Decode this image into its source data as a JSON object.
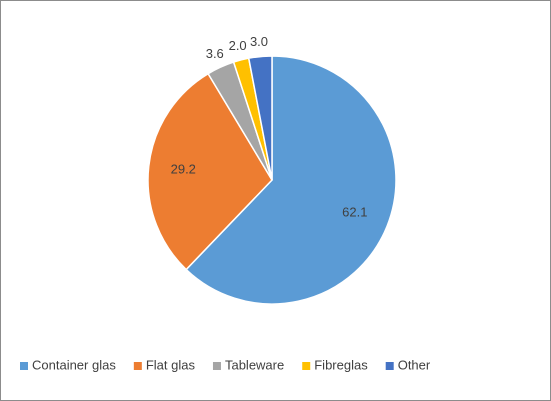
{
  "chart_data": {
    "type": "pie",
    "categories": [
      "Container glas",
      "Flat glas",
      "Tableware",
      "Fibreglas",
      "Other"
    ],
    "values": [
      62.1,
      29.2,
      3.6,
      2.0,
      3.0
    ],
    "value_labels": [
      "62.1",
      "29.2",
      "3.6",
      "2.0",
      "3.0"
    ],
    "colors": [
      "#5b9bd5",
      "#ed7d31",
      "#a5a5a5",
      "#ffc000",
      "#4472c4"
    ],
    "legend": "bottom"
  }
}
